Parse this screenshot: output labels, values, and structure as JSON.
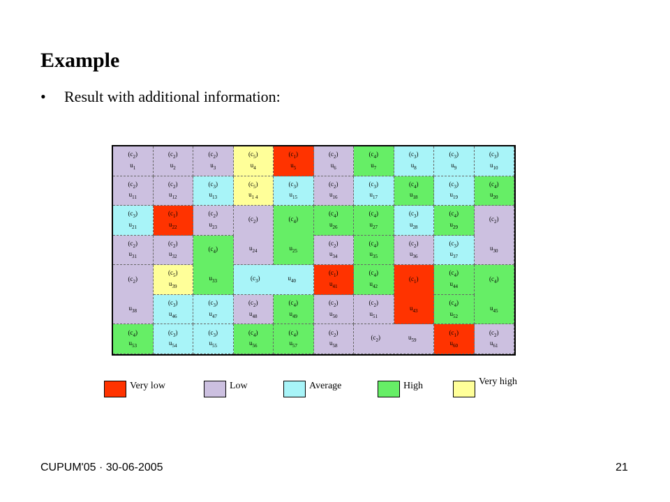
{
  "title": "Example",
  "bullet": "•",
  "subtitle": "Result with additional information:",
  "colors": {
    "c1": "#ff3300",
    "c2": "#ccc0e0",
    "c3": "#a8f4f8",
    "c4": "#66ee66",
    "c5": "#ffff99"
  },
  "cells": [
    {
      "c": "(c2)",
      "u": "u1",
      "cls": "c2",
      "col": "1",
      "row": "1"
    },
    {
      "c": "(c2)",
      "u": "u2",
      "cls": "c2",
      "col": "2",
      "row": "1"
    },
    {
      "c": "(c2)",
      "u": "u3",
      "cls": "c2",
      "col": "3",
      "row": "1"
    },
    {
      "c": "(c5)",
      "u": "u4",
      "cls": "c5",
      "col": "4",
      "row": "1"
    },
    {
      "c": "(c1)",
      "u": "u5",
      "cls": "c1",
      "col": "5",
      "row": "1"
    },
    {
      "c": "(c2)",
      "u": "u6",
      "cls": "c2",
      "col": "6",
      "row": "1"
    },
    {
      "c": "(c4)",
      "u": "u7",
      "cls": "c4",
      "col": "7",
      "row": "1"
    },
    {
      "c": "(c3)",
      "u": "u8",
      "cls": "c3",
      "col": "8",
      "row": "1"
    },
    {
      "c": "(c3)",
      "u": "u9",
      "cls": "c3",
      "col": "9",
      "row": "1"
    },
    {
      "c": "(c3)",
      "u": "u10",
      "cls": "c3",
      "col": "10",
      "row": "1"
    },
    {
      "c": "(c2)",
      "u": "u11",
      "cls": "c2",
      "col": "1",
      "row": "2"
    },
    {
      "c": "(c2)",
      "u": "u12",
      "cls": "c2",
      "col": "2",
      "row": "2"
    },
    {
      "c": "(c3)",
      "u": "u13",
      "cls": "c3",
      "col": "3",
      "row": "2"
    },
    {
      "c": "(c5)",
      "u": "u1 4",
      "cls": "c5",
      "col": "4",
      "row": "2"
    },
    {
      "c": "(c3)",
      "u": "u15",
      "cls": "c3",
      "col": "5",
      "row": "2"
    },
    {
      "c": "(c2)",
      "u": "u16",
      "cls": "c2",
      "col": "6",
      "row": "2"
    },
    {
      "c": "(c3)",
      "u": "u17",
      "cls": "c3",
      "col": "7",
      "row": "2"
    },
    {
      "c": "(c4)",
      "u": "u18",
      "cls": "c4",
      "col": "8",
      "row": "2"
    },
    {
      "c": "(c3)",
      "u": "u19",
      "cls": "c3",
      "col": "9",
      "row": "2"
    },
    {
      "c": "(c4)",
      "u": "u20",
      "cls": "c4",
      "col": "10",
      "row": "2"
    },
    {
      "c": "(c3)",
      "u": "u21",
      "cls": "c3",
      "col": "1",
      "row": "3"
    },
    {
      "c": "(c1)",
      "u": "u22",
      "cls": "c1",
      "col": "2",
      "row": "3"
    },
    {
      "c": "(c2)",
      "u": "u23",
      "cls": "c2",
      "col": "3",
      "row": "3"
    },
    {
      "c": "(c2)",
      "u": "u24",
      "cls": "c2",
      "col": "4",
      "row": "3 / span 2",
      "split": true
    },
    {
      "c": "(c4)",
      "u": "u25",
      "cls": "c4",
      "col": "5",
      "row": "3 / span 2",
      "split": true
    },
    {
      "c": "(c4)",
      "u": "u26",
      "cls": "c4",
      "col": "6",
      "row": "3"
    },
    {
      "c": "(c4)",
      "u": "u27",
      "cls": "c4",
      "col": "7",
      "row": "3"
    },
    {
      "c": "(c3)",
      "u": "u28",
      "cls": "c3",
      "col": "8",
      "row": "3"
    },
    {
      "c": "(c4)",
      "u": "u29",
      "cls": "c4",
      "col": "9",
      "row": "3"
    },
    {
      "c": "(c2)",
      "u": "u30",
      "cls": "c2",
      "col": "10",
      "row": "3 / span 2",
      "split": true
    },
    {
      "c": "(c2)",
      "u": "u31",
      "cls": "c2",
      "col": "1",
      "row": "4"
    },
    {
      "c": "(c2)",
      "u": "u32",
      "cls": "c2",
      "col": "2",
      "row": "4"
    },
    {
      "c": "(c4)",
      "u": "u33",
      "cls": "c4",
      "col": "3",
      "row": "4 / span 2",
      "split": true
    },
    {
      "c": "(c2)",
      "u": "u34",
      "cls": "c2",
      "col": "6",
      "row": "4"
    },
    {
      "c": "(c4)",
      "u": "u35",
      "cls": "c4",
      "col": "7",
      "row": "4"
    },
    {
      "c": "(c2)",
      "u": "u36",
      "cls": "c2",
      "col": "8",
      "row": "4"
    },
    {
      "c": "(c3)",
      "u": "u37",
      "cls": "c3",
      "col": "9",
      "row": "4"
    },
    {
      "c": "(c2)",
      "u": "u38",
      "cls": "c2",
      "col": "1",
      "row": "5 / span 2",
      "split": true
    },
    {
      "c": "(c5)",
      "u": "u39",
      "cls": "c5",
      "col": "2",
      "row": "5"
    },
    {
      "c": "(c3)",
      "u": "u40",
      "cls": "c3",
      "col": "4 / span 2",
      "row": "5",
      "horiz": true
    },
    {
      "c": "(c1)",
      "u": "u41",
      "cls": "c1",
      "col": "6",
      "row": "5"
    },
    {
      "c": "(c4)",
      "u": "u42",
      "cls": "c4",
      "col": "7",
      "row": "5"
    },
    {
      "c": "(c1)",
      "u": "u43",
      "cls": "c1",
      "col": "8",
      "row": "5 / span 2",
      "split": true
    },
    {
      "c": "(c4)",
      "u": "u44",
      "cls": "c4",
      "col": "9",
      "row": "5"
    },
    {
      "c": "(c4)",
      "u": "u45",
      "cls": "c4",
      "col": "10",
      "row": "5 / span 2",
      "split": true
    },
    {
      "c": "(c3)",
      "u": "u46",
      "cls": "c3",
      "col": "2",
      "row": "6"
    },
    {
      "c": "(c3)",
      "u": "u47",
      "cls": "c3",
      "col": "3",
      "row": "6"
    },
    {
      "c": "(c2)",
      "u": "u48",
      "cls": "c2",
      "col": "4",
      "row": "6"
    },
    {
      "c": "(c4)",
      "u": "u49",
      "cls": "c4",
      "col": "5",
      "row": "6"
    },
    {
      "c": "(c2)",
      "u": "u50",
      "cls": "c2",
      "col": "6",
      "row": "6"
    },
    {
      "c": "(c2)",
      "u": "u51",
      "cls": "c2",
      "col": "7",
      "row": "6"
    },
    {
      "c": "(c4)",
      "u": "u52",
      "cls": "c4",
      "col": "9",
      "row": "6"
    },
    {
      "c": "(c4)",
      "u": "u53",
      "cls": "c4",
      "col": "1",
      "row": "7"
    },
    {
      "c": "(c3)",
      "u": "u54",
      "cls": "c3",
      "col": "2",
      "row": "7"
    },
    {
      "c": "(c3)",
      "u": "u55",
      "cls": "c3",
      "col": "3",
      "row": "7"
    },
    {
      "c": "(c4)",
      "u": "u56",
      "cls": "c4",
      "col": "4",
      "row": "7"
    },
    {
      "c": "(c4)",
      "u": "u57",
      "cls": "c4",
      "col": "5",
      "row": "7"
    },
    {
      "c": "(c2)",
      "u": "u58",
      "cls": "c2",
      "col": "6",
      "row": "7"
    },
    {
      "c": "(c2)",
      "u": "u59",
      "cls": "c2",
      "col": "7 / span 2",
      "row": "7",
      "horiz": true
    },
    {
      "c": "(c1)",
      "u": "u60",
      "cls": "c1",
      "col": "9",
      "row": "7"
    },
    {
      "c": "(c2)",
      "u": "u61",
      "cls": "c2",
      "col": "10",
      "row": "7"
    }
  ],
  "legend": [
    {
      "label": "Very low",
      "cls": "c1"
    },
    {
      "label": "Low",
      "cls": "c2"
    },
    {
      "label": "Average",
      "cls": "c3"
    },
    {
      "label": "High",
      "cls": "c4"
    },
    {
      "label": "Very high",
      "cls": "c5"
    }
  ],
  "footer": {
    "left": "CUPUM'05 · 30-06-2005",
    "right": "21"
  }
}
